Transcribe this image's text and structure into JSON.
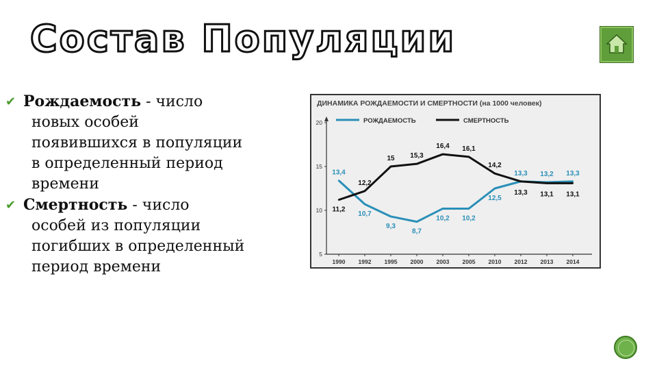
{
  "slide": {
    "title": "Состав Популяции",
    "bullets": [
      {
        "icon": "checkmark-icon",
        "term": "Рождаемость",
        "lines": [
          " - число",
          "новых особей",
          "появившихся в популяции",
          "в определенный период",
          "времени"
        ]
      },
      {
        "icon": "checkmark-icon",
        "term": "Смертность",
        "lines": [
          " - число",
          "особей из популяции",
          "погибших в определенный",
          "период времени"
        ]
      }
    ],
    "home_icon": "home-icon",
    "accent_color": "#5f9e3a"
  },
  "chart_data": {
    "type": "line",
    "title": "ДИНАМИКА РОЖДАЕМОСТИ И СМЕРТНОСТИ (на 1000 человек)",
    "categories": [
      "1990",
      "1992",
      "1995",
      "2000",
      "2003",
      "2005",
      "2010",
      "2012",
      "2013",
      "2014"
    ],
    "series": [
      {
        "name": "РОЖДАЕМОСТЬ",
        "color": "#2a8fb8",
        "values": [
          13.4,
          10.7,
          9.3,
          8.7,
          10.2,
          10.2,
          12.5,
          13.3,
          13.2,
          13.3
        ]
      },
      {
        "name": "СМЕРТНОСТЬ",
        "color": "#111111",
        "values": [
          11.2,
          12.2,
          15,
          15.3,
          16.4,
          16.1,
          14.2,
          13.3,
          13.1,
          13.1
        ]
      }
    ],
    "value_labels": {
      "РОЖДАЕМОСТЬ": [
        "13,4",
        "10,7",
        "9,3",
        "8,7",
        "10,2",
        "10,2",
        "12,5",
        "13,3",
        "13,2",
        "13,3"
      ],
      "СМЕРТНОСТЬ": [
        "11,2",
        "12,2",
        "15",
        "15,3",
        "16,4",
        "16,1",
        "14,2",
        "13,3",
        "13,1",
        "13,1"
      ]
    },
    "yticks": [
      "5",
      "10",
      "15",
      "20"
    ],
    "ylim": [
      5,
      20
    ],
    "legend_position": "top-left",
    "grid": false
  }
}
